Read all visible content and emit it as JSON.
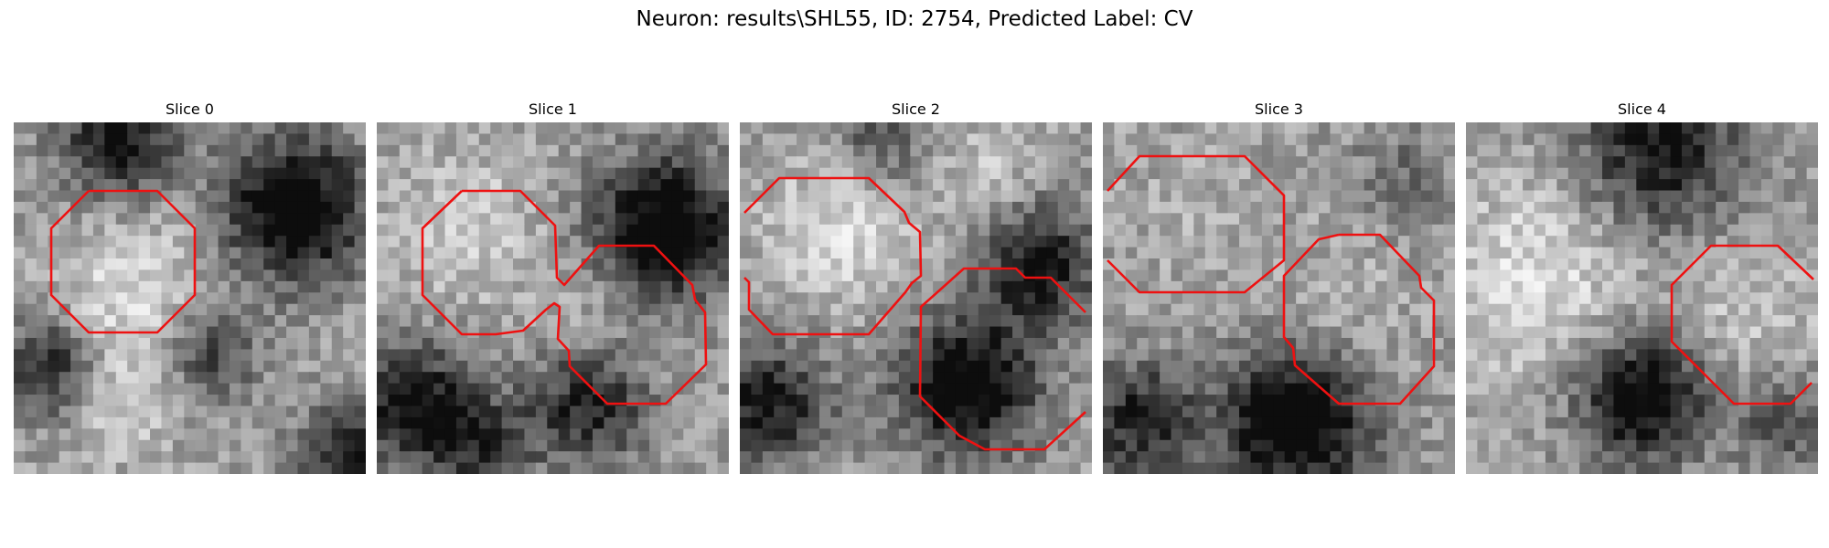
{
  "figure": {
    "title": "Neuron: results\\SHL55, ID: 2754, Predicted Label: CV"
  },
  "panels": [
    {
      "title": "Slice 0",
      "seed": 11,
      "outline_color": "#ee1111"
    },
    {
      "title": "Slice 1",
      "seed": 23,
      "outline_color": "#ee1111"
    },
    {
      "title": "Slice 2",
      "seed": 37,
      "outline_color": "#ee1111"
    },
    {
      "title": "Slice 3",
      "seed": 41,
      "outline_color": "#ee1111"
    },
    {
      "title": "Slice 4",
      "seed": 53,
      "outline_color": "#ee1111"
    }
  ]
}
